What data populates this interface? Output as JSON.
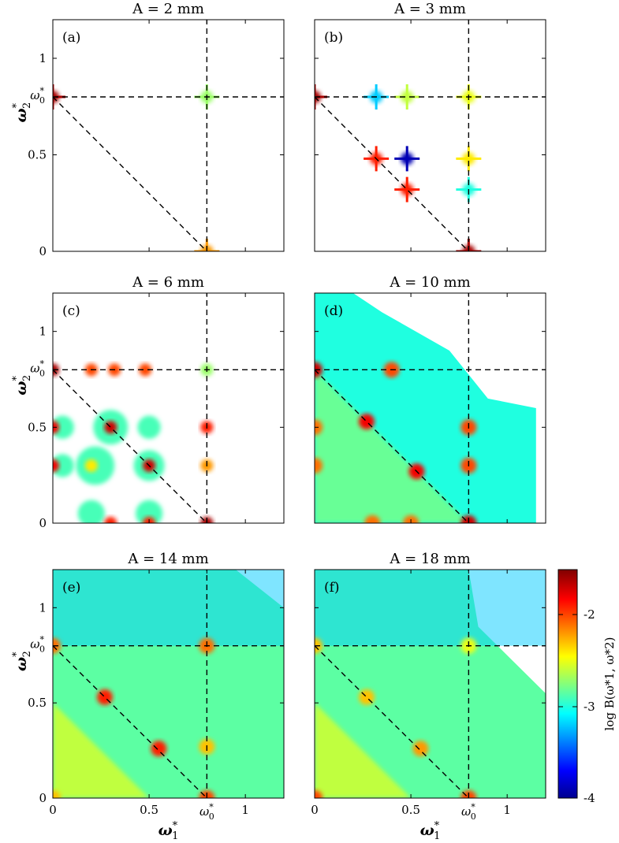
{
  "figure": {
    "xlabel": "ω",
    "xlabel_sup": "*",
    "xlabel_sub": "1",
    "ylabel": "ω",
    "ylabel_sup": "*",
    "ylabel_sub": "2",
    "omega0_tick": "ω",
    "omega0_sup": "*",
    "omega0_sub": "0"
  },
  "colorbar": {
    "label": "log B(ω*1, ω*2)",
    "ticks": [
      "-2",
      "-3",
      "-4"
    ],
    "tick_values": [
      -2,
      -3,
      -4
    ],
    "range": [
      -4,
      -1.5
    ],
    "colormap": "jet",
    "colors": [
      "#00008f",
      "#0000ff",
      "#00ffff",
      "#ffff00",
      "#ff0000",
      "#800000"
    ]
  },
  "chart_data": [
    {
      "type": "heatmap",
      "panel": "(a)",
      "title": "A = 2 mm",
      "xlabel": "ω*1",
      "ylabel": "ω*2",
      "xlim": [
        0,
        1.2
      ],
      "ylim": [
        0,
        1.2
      ],
      "omega0": 0.8,
      "x_ticks": [
        "0",
        "0.5",
        "ω*0",
        "1"
      ],
      "y_ticks": [
        "0",
        "0.5",
        "ω*0",
        "1"
      ],
      "peaks": [
        {
          "x": 0,
          "y": 0.8,
          "log_b": -1.6
        },
        {
          "x": 0.8,
          "y": 0.8,
          "log_b": -2.7
        },
        {
          "x": 0.8,
          "y": 0,
          "log_b": -2.2
        }
      ],
      "coverage": 0.0
    },
    {
      "type": "heatmap",
      "panel": "(b)",
      "title": "A = 3 mm",
      "xlabel": "ω*1",
      "ylabel": "ω*2",
      "xlim": [
        0,
        1.2
      ],
      "ylim": [
        0,
        1.2
      ],
      "omega0": 0.8,
      "peaks": [
        {
          "x": 0,
          "y": 0.8,
          "log_b": -1.6
        },
        {
          "x": 0.8,
          "y": 0.8,
          "log_b": -2.5
        },
        {
          "x": 0.8,
          "y": 0,
          "log_b": -1.6
        },
        {
          "x": 0.32,
          "y": 0.48,
          "log_b": -1.9
        },
        {
          "x": 0.48,
          "y": 0.32,
          "log_b": -1.9
        },
        {
          "x": 0.48,
          "y": 0.48,
          "log_b": -3.9
        },
        {
          "x": 0.32,
          "y": 0.8,
          "log_b": -3.2
        },
        {
          "x": 0.48,
          "y": 0.8,
          "log_b": -2.6
        },
        {
          "x": 0.8,
          "y": 0.48,
          "log_b": -2.4
        },
        {
          "x": 0.8,
          "y": 0.32,
          "log_b": -3.0
        }
      ],
      "coverage": 0.0
    },
    {
      "type": "heatmap",
      "panel": "(c)",
      "title": "A = 6 mm",
      "xlabel": "ω*1",
      "ylabel": "ω*2",
      "xlim": [
        0,
        1.2
      ],
      "ylim": [
        0,
        1.2
      ],
      "omega0": 0.8,
      "peaks": [
        {
          "x": 0,
          "y": 0.8,
          "log_b": -1.6
        },
        {
          "x": 0.8,
          "y": 0,
          "log_b": -1.6
        },
        {
          "x": 0.3,
          "y": 0.5,
          "log_b": -1.7
        },
        {
          "x": 0.5,
          "y": 0.3,
          "log_b": -1.7
        },
        {
          "x": 0,
          "y": 0.5,
          "log_b": -1.8
        },
        {
          "x": 0,
          "y": 0.3,
          "log_b": -1.8
        },
        {
          "x": 0.2,
          "y": 0.8,
          "log_b": -2.0
        },
        {
          "x": 0.32,
          "y": 0.8,
          "log_b": -2.0
        },
        {
          "x": 0.48,
          "y": 0.8,
          "log_b": -2.0
        },
        {
          "x": 0.8,
          "y": 0.5,
          "log_b": -1.9
        },
        {
          "x": 0.8,
          "y": 0.3,
          "log_b": -2.2
        },
        {
          "x": 0.2,
          "y": 0.3,
          "log_b": -2.4
        },
        {
          "x": 0.3,
          "y": 0.0,
          "log_b": -1.9
        },
        {
          "x": 0.5,
          "y": 0.0,
          "log_b": -1.9
        },
        {
          "x": 0.8,
          "y": 0.8,
          "log_b": -2.7
        }
      ],
      "coverage": 0.2
    },
    {
      "type": "heatmap",
      "panel": "(d)",
      "title": "A = 10 mm",
      "xlabel": "ω*1",
      "ylabel": "ω*2",
      "xlim": [
        0,
        1.2
      ],
      "ylim": [
        0,
        1.2
      ],
      "omega0": 0.8,
      "peaks": [
        {
          "x": 0,
          "y": 0.8,
          "log_b": -1.7
        },
        {
          "x": 0.27,
          "y": 0.53,
          "log_b": -1.8
        },
        {
          "x": 0.53,
          "y": 0.27,
          "log_b": -1.8
        },
        {
          "x": 0.8,
          "y": 0,
          "log_b": -1.7
        },
        {
          "x": 0.4,
          "y": 0.8,
          "log_b": -2.0
        },
        {
          "x": 0.8,
          "y": 0.5,
          "log_b": -2.0
        },
        {
          "x": 0.8,
          "y": 0.3,
          "log_b": -2.0
        },
        {
          "x": 0,
          "y": 0.3,
          "log_b": -2.1
        },
        {
          "x": 0,
          "y": 0.5,
          "log_b": -2.1
        },
        {
          "x": 0.3,
          "y": 0,
          "log_b": -2.1
        },
        {
          "x": 0.5,
          "y": 0,
          "log_b": -2.1
        }
      ],
      "coverage": 0.75
    },
    {
      "type": "heatmap",
      "panel": "(e)",
      "title": "A = 14 mm",
      "xlabel": "ω*1",
      "ylabel": "ω*2",
      "xlim": [
        0,
        1.2
      ],
      "ylim": [
        0,
        1.2
      ],
      "omega0": 0.8,
      "peaks": [
        {
          "x": 0.27,
          "y": 0.53,
          "log_b": -1.9
        },
        {
          "x": 0.55,
          "y": 0.26,
          "log_b": -1.9
        },
        {
          "x": 0,
          "y": 0.8,
          "log_b": -2.1
        },
        {
          "x": 0.8,
          "y": 0.8,
          "log_b": -2.1
        },
        {
          "x": 0.8,
          "y": 0,
          "log_b": -2.0
        },
        {
          "x": 0,
          "y": 0,
          "log_b": -2.3
        },
        {
          "x": 0.8,
          "y": 0.27,
          "log_b": -2.3
        }
      ],
      "coverage": 0.95
    },
    {
      "type": "heatmap",
      "panel": "(f)",
      "title": "A = 18 mm",
      "xlabel": "ω*1",
      "ylabel": "ω*2",
      "xlim": [
        0,
        1.2
      ],
      "ylim": [
        0,
        1.2
      ],
      "omega0": 0.8,
      "peaks": [
        {
          "x": 0,
          "y": 0,
          "log_b": -2.0
        },
        {
          "x": 0.27,
          "y": 0.53,
          "log_b": -2.3
        },
        {
          "x": 0.55,
          "y": 0.26,
          "log_b": -2.2
        },
        {
          "x": 0.8,
          "y": 0,
          "log_b": -2.0
        },
        {
          "x": 0,
          "y": 0.8,
          "log_b": -2.3
        },
        {
          "x": 0.8,
          "y": 0.8,
          "log_b": -2.5
        }
      ],
      "coverage": 0.9
    }
  ]
}
